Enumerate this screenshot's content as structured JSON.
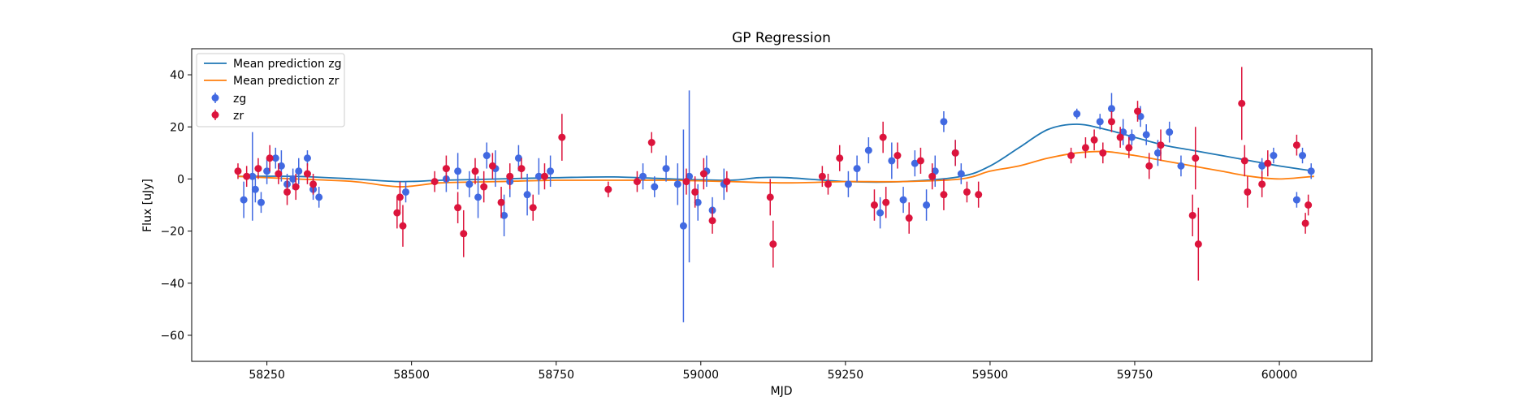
{
  "chart_data": {
    "type": "scatter",
    "title": "GP Regression",
    "xlabel": "MJD",
    "ylabel": "Flux [uJy]",
    "xlim": [
      58120,
      60160
    ],
    "ylim": [
      -70,
      50
    ],
    "xticks": [
      58250,
      58500,
      58750,
      59000,
      59250,
      59500,
      59750,
      60000
    ],
    "yticks": [
      -60,
      -40,
      -20,
      0,
      20,
      40
    ],
    "grid": false,
    "legend_position": "top-left",
    "legend": [
      "Mean prediction zg",
      "Mean prediction zr",
      "zg",
      "zr"
    ],
    "lines": [
      {
        "name": "Mean prediction zg",
        "color": "#1f77b4",
        "x": [
          58200,
          58300,
          58400,
          58480,
          58550,
          58650,
          58750,
          58850,
          58950,
          59050,
          59100,
          59150,
          59250,
          59350,
          59450,
          59500,
          59550,
          59600,
          59650,
          59700,
          59750,
          59800,
          59850,
          59900,
          59950,
          60000,
          60060
        ],
        "y": [
          1,
          1,
          0,
          -1,
          -0.5,
          0,
          0.5,
          0.8,
          0,
          -0.5,
          0.5,
          0.5,
          -1,
          -1,
          1,
          5,
          12,
          19,
          21,
          19,
          16,
          13,
          11,
          9,
          7,
          5,
          3
        ]
      },
      {
        "name": "Mean prediction zr",
        "color": "#ff7f0e",
        "x": [
          58200,
          58300,
          58400,
          58480,
          58550,
          58650,
          58750,
          58850,
          58950,
          59050,
          59150,
          59250,
          59350,
          59450,
          59500,
          59550,
          59600,
          59650,
          59700,
          59750,
          59800,
          59850,
          59900,
          59950,
          60000,
          60060
        ],
        "y": [
          1,
          0,
          -1,
          -3,
          -1.5,
          -1,
          -0.5,
          -0.5,
          -0.5,
          -1,
          -1.5,
          -1,
          -1,
          0,
          3,
          5,
          8,
          10,
          10.5,
          9,
          7,
          5,
          3,
          1,
          0,
          1
        ]
      }
    ],
    "series": [
      {
        "name": "zg",
        "color": "#4169e1",
        "x": [
          58210,
          58225,
          58230,
          58240,
          58250,
          58265,
          58275,
          58285,
          58295,
          58305,
          58320,
          58330,
          58340,
          58490,
          58560,
          58580,
          58600,
          58615,
          58630,
          58645,
          58660,
          58670,
          58685,
          58700,
          58720,
          58740,
          58900,
          58920,
          58940,
          58960,
          58970,
          58980,
          58995,
          59010,
          59020,
          59040,
          59255,
          59270,
          59290,
          59310,
          59330,
          59350,
          59370,
          59390,
          59405,
          59420,
          59440,
          59450,
          59650,
          59690,
          59710,
          59730,
          59745,
          59760,
          59770,
          59790,
          59810,
          59830,
          59970,
          59990,
          60030,
          60040,
          60055
        ],
        "y": [
          -8,
          1,
          -4,
          -9,
          3,
          8,
          5,
          -2,
          0,
          3,
          8,
          -4,
          -7,
          -5,
          0,
          3,
          -2,
          -7,
          9,
          4,
          -14,
          -1,
          8,
          -6,
          1,
          3,
          1,
          -3,
          4,
          -2,
          -18,
          1,
          -9,
          3,
          -12,
          -2,
          -2,
          4,
          11,
          -13,
          7,
          -8,
          6,
          -10,
          3,
          22,
          10,
          2,
          25,
          22,
          27,
          18,
          16,
          24,
          17,
          10,
          18,
          5,
          5,
          9,
          -8,
          9,
          3
        ],
        "error": [
          7,
          17,
          5,
          4,
          5,
          4,
          6,
          4,
          4,
          5,
          3,
          4,
          4,
          4,
          5,
          7,
          5,
          8,
          5,
          7,
          8,
          6,
          5,
          8,
          7,
          6,
          5,
          4,
          5,
          8,
          37,
          33,
          7,
          6,
          5,
          6,
          5,
          5,
          5,
          6,
          7,
          5,
          5,
          6,
          6,
          4,
          5,
          4,
          2,
          3,
          6,
          5,
          3,
          4,
          4,
          5,
          4,
          4,
          3,
          3,
          3,
          3,
          3
        ]
      },
      {
        "name": "zr",
        "color": "#dc143c",
        "x": [
          58200,
          58215,
          58235,
          58255,
          58270,
          58285,
          58300,
          58320,
          58330,
          58475,
          58480,
          58485,
          58540,
          58560,
          58580,
          58590,
          58610,
          58625,
          58640,
          58655,
          58670,
          58690,
          58710,
          58730,
          58760,
          58840,
          58890,
          58915,
          58975,
          58990,
          59005,
          59020,
          59045,
          59120,
          59125,
          59210,
          59220,
          59240,
          59300,
          59315,
          59320,
          59340,
          59360,
          59380,
          59400,
          59420,
          59440,
          59460,
          59480,
          59640,
          59665,
          59680,
          59695,
          59710,
          59725,
          59740,
          59755,
          59775,
          59795,
          59850,
          59855,
          59860,
          59935,
          59940,
          59945,
          59970,
          59980,
          60030,
          60045,
          60050
        ],
        "y": [
          3,
          1,
          4,
          8,
          2,
          -5,
          -3,
          2,
          -2,
          -13,
          -7,
          -18,
          -1,
          4,
          -11,
          -21,
          3,
          -3,
          5,
          -9,
          1,
          4,
          -11,
          1,
          16,
          -4,
          -1,
          14,
          -1,
          -5,
          2,
          -16,
          -1,
          -7,
          -25,
          1,
          -2,
          8,
          -10,
          16,
          -9,
          9,
          -15,
          7,
          1,
          -6,
          10,
          -5,
          -6,
          9,
          12,
          15,
          10,
          22,
          16,
          12,
          26,
          5,
          13,
          -14,
          8,
          -25,
          29,
          7,
          -5,
          -2,
          6,
          13,
          -17,
          -10
        ],
        "error": [
          3,
          4,
          4,
          5,
          4,
          5,
          5,
          4,
          4,
          6,
          6,
          8,
          4,
          5,
          6,
          9,
          5,
          6,
          5,
          6,
          5,
          4,
          5,
          5,
          9,
          3,
          4,
          4,
          5,
          6,
          6,
          5,
          4,
          7,
          9,
          4,
          4,
          5,
          6,
          6,
          6,
          5,
          6,
          5,
          5,
          6,
          5,
          4,
          5,
          3,
          4,
          4,
          4,
          4,
          4,
          4,
          4,
          5,
          6,
          8,
          12,
          14,
          14,
          6,
          6,
          5,
          5,
          4,
          4,
          4
        ]
      }
    ]
  }
}
